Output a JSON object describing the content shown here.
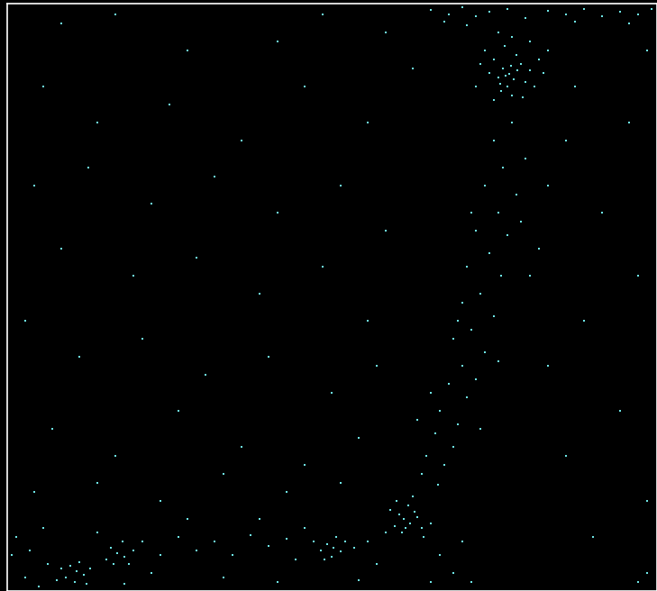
{
  "chart_data": {
    "type": "scatter",
    "x": [
      557,
      550,
      562,
      545,
      570,
      555,
      540,
      575,
      565,
      548,
      580,
      535,
      560,
      590,
      530,
      552,
      572,
      585,
      540,
      595,
      525,
      560,
      545,
      580,
      600,
      520,
      566,
      553,
      559,
      547,
      470,
      490,
      505,
      520,
      535,
      555,
      575,
      600,
      620,
      640,
      660,
      680,
      700,
      715,
      485,
      510,
      630,
      690,
      560,
      540,
      575,
      550,
      530,
      565,
      545,
      520,
      555,
      535,
      510,
      548,
      525,
      505,
      540,
      515,
      495,
      530,
      505,
      520,
      490,
      510,
      480,
      500,
      475,
      495,
      465,
      485,
      460,
      478,
      570,
      590,
      500,
      545,
      470,
      600,
      580,
      525,
      455,
      515,
      440,
      435,
      447,
      430,
      452,
      445,
      460,
      425,
      438,
      470,
      462,
      450,
      432,
      455,
      442,
      362,
      355,
      370,
      348,
      375,
      360,
      340,
      385,
      365,
      352,
      122,
      115,
      130,
      110,
      128,
      140,
      118,
      135,
      77,
      70,
      85,
      65,
      80,
      92,
      60,
      75,
      88,
      55,
      10,
      25,
      40,
      45,
      100,
      150,
      170,
      190,
      210,
      230,
      250,
      270,
      290,
      310,
      320,
      330,
      400,
      410,
      420,
      480,
      495,
      505,
      515,
      20,
      160,
      240,
      300,
      390,
      200,
      280,
      5,
      35,
      130,
      470,
      700,
      710,
      60,
      120,
      200,
      300,
      350,
      420,
      40,
      100,
      180,
      260,
      330,
      400,
      450,
      30,
      90,
      160,
      230,
      300,
      370,
      420,
      60,
      140,
      210,
      280,
      350,
      400,
      20,
      80,
      150,
      220,
      290,
      360,
      410,
      50,
      120,
      190,
      260,
      330,
      390,
      30,
      100,
      170,
      240,
      310,
      370,
      620,
      660,
      700,
      640,
      680,
      620,
      710,
      650,
      600,
      690,
      630,
      710
    ],
    "values": [
      574,
      580,
      568,
      570,
      585,
      560,
      590,
      565,
      595,
      555,
      578,
      575,
      550,
      590,
      600,
      605,
      548,
      560,
      545,
      575,
      585,
      615,
      620,
      610,
      600,
      560,
      578,
      572,
      583,
      563,
      645,
      640,
      648,
      638,
      643,
      646,
      636,
      644,
      640,
      646,
      638,
      643,
      640,
      646,
      632,
      628,
      632,
      630,
      520,
      500,
      480,
      470,
      450,
      440,
      420,
      400,
      395,
      375,
      360,
      350,
      330,
      320,
      305,
      290,
      280,
      265,
      250,
      235,
      230,
      215,
      200,
      185,
      175,
      160,
      150,
      140,
      130,
      118,
      410,
      380,
      300,
      255,
      220,
      450,
      350,
      180,
      190,
      420,
      80,
      85,
      75,
      72,
      88,
      95,
      70,
      90,
      65,
      75,
      60,
      105,
      100,
      82,
      70,
      48,
      52,
      44,
      45,
      55,
      38,
      55,
      48,
      60,
      35,
      42,
      48,
      38,
      35,
      55,
      45,
      30,
      30,
      22,
      28,
      18,
      15,
      32,
      25,
      25,
      10,
      8,
      12,
      60,
      45,
      70,
      30,
      65,
      55,
      40,
      60,
      45,
      55,
      40,
      62,
      50,
      58,
      35,
      70,
      55,
      30,
      65,
      40,
      20,
      55,
      10,
      15,
      20,
      15,
      10,
      12,
      80,
      80,
      40,
      5,
      8,
      10,
      10,
      20,
      630,
      640,
      600,
      610,
      640,
      620,
      560,
      520,
      540,
      500,
      560,
      520,
      580,
      450,
      470,
      430,
      460,
      420,
      450,
      400,
      380,
      350,
      370,
      330,
      360,
      300,
      300,
      260,
      280,
      240,
      260,
      220,
      250,
      180,
      150,
      200,
      160,
      140,
      170,
      110,
      120,
      100,
      130,
      110,
      120,
      500,
      420,
      350,
      300,
      200,
      150,
      100,
      60,
      250,
      520,
      560,
      600
    ],
    "color": "#6ee6e6",
    "marker": "square",
    "xlim": [
      0,
      721
    ],
    "ylim": [
      0,
      652
    ],
    "tick_labels": false
  }
}
